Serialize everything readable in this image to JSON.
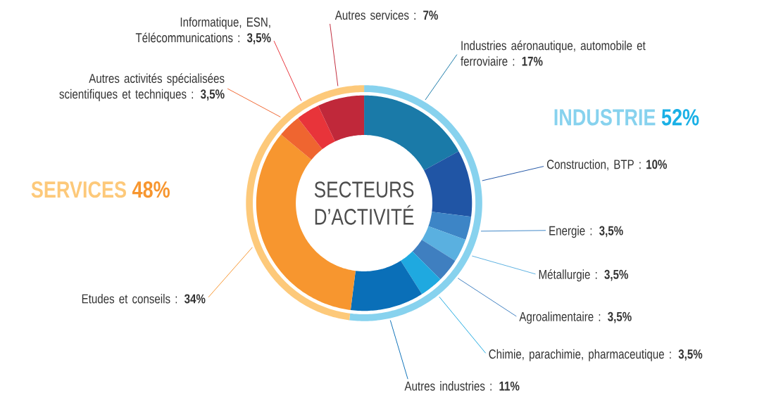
{
  "chart_data": [
    {
      "type": "donut",
      "title": "SECTEURS D’ACTIVITÉ",
      "categories": [
        "Industries aéronautique, automobile et ferroviaire",
        "Construction, BTP",
        "Energie",
        "Métallurgie",
        "Agroalimentaire",
        "Chimie, parachimie, pharmaceutique",
        "Autres industries",
        "Etudes et conseils",
        "Autres activités spécialisées scientifiques et techniques",
        "Informatique, ESN, Télécommunications",
        "Autres services"
      ],
      "values": [
        17,
        10,
        3.5,
        3.5,
        3.5,
        3.5,
        11,
        34,
        3.5,
        3.5,
        7
      ],
      "value_labels": [
        ": **17%**",
        ": **10%**",
        ": **3,5%**",
        ": **3,5%**",
        ": **3,5%**",
        ": **3,5%**",
        ": **11%**",
        ": **34%**",
        ": **3,5%**",
        ": **3,5%**",
        ": **7%**"
      ],
      "colors": [
        "#1a7aa8",
        "#2055a5",
        "#3d85c6",
        "#5ab0e0",
        "#3f7fc0",
        "#1fa9e0",
        "#0a6fb8",
        "#f7962f",
        "#ef6530",
        "#e8343a",
        "#c0283a"
      ]
    },
    {
      "type": "donut",
      "categories": [
        "INDUSTRIE",
        "SERVICES"
      ],
      "values": [
        52,
        48
      ],
      "value_labels": [
        "52%",
        "48%"
      ],
      "colors": [
        "#87d2ee",
        "#fdc97a"
      ]
    }
  ]
}
